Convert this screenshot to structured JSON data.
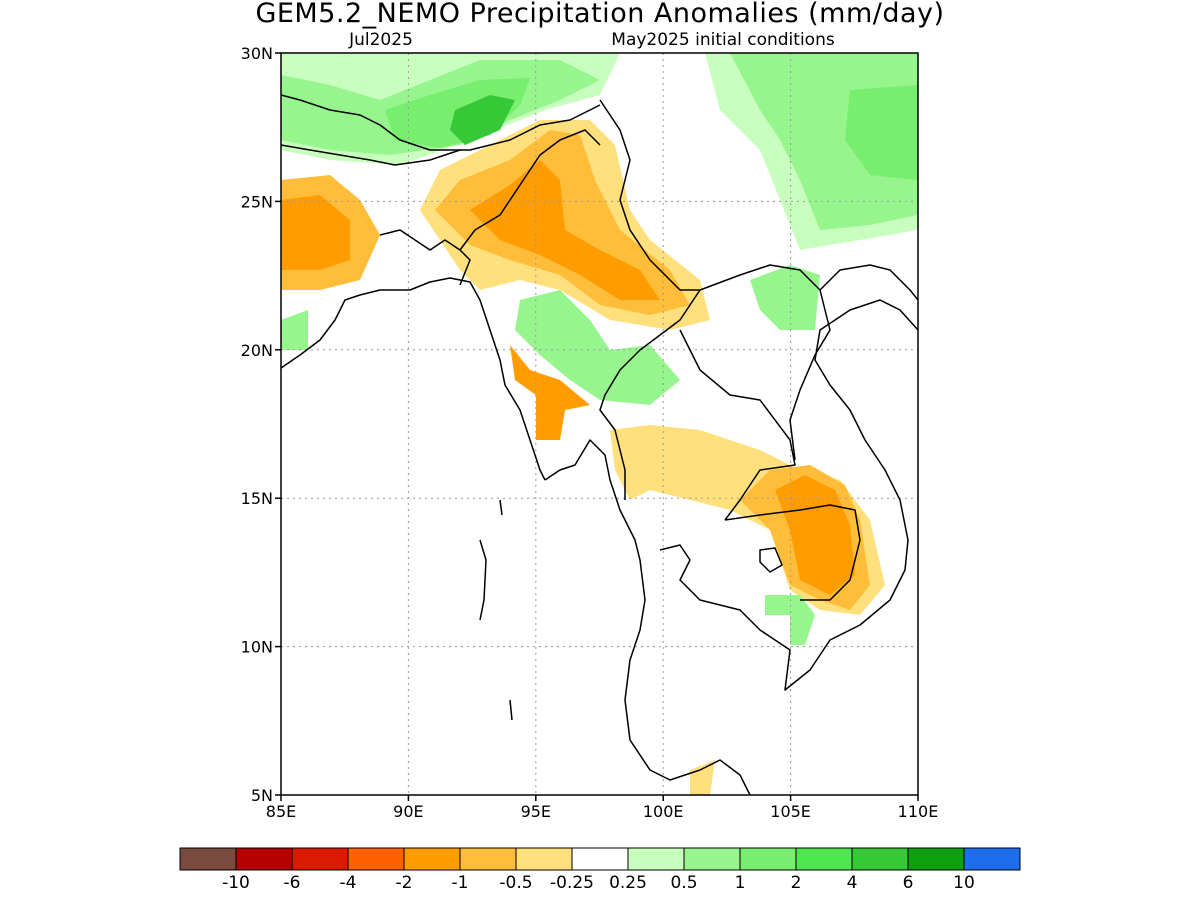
{
  "title": "GEM5.2_NEMO Precipitation Anomalies (mm/day)",
  "subtitle_left": "Jul2025",
  "subtitle_right": "May2025 initial conditions",
  "map": {
    "lon_range": [
      85,
      110
    ],
    "lat_range": [
      5,
      30
    ],
    "x_ticks": [
      "85E",
      "90E",
      "95E",
      "100E",
      "105E",
      "110E"
    ],
    "y_ticks": [
      "5N",
      "10N",
      "15N",
      "20N",
      "25N",
      "30N"
    ],
    "grid": true,
    "anomaly_regions": [
      {
        "label": "Himalaya / NE India wet",
        "category": "0.5 to 4",
        "sign": "positive"
      },
      {
        "label": "Bangladesh / Myanmar north dry",
        "category": "-1 to -0.25",
        "sign": "negative"
      },
      {
        "label": "South China wet",
        "category": "0.25 to 2",
        "sign": "positive"
      },
      {
        "label": "Cambodia / S Vietnam dry",
        "category": "-1 to -0.25",
        "sign": "negative"
      },
      {
        "label": "West Bengal dry",
        "category": "-1 to -0.25",
        "sign": "negative"
      }
    ]
  },
  "colorbar": {
    "labels": [
      "-10",
      "-6",
      "-4",
      "-2",
      "-1",
      "-0.5",
      "-0.25",
      "0.25",
      "0.5",
      "1",
      "2",
      "4",
      "6",
      "10"
    ],
    "colors": [
      "#7a4a3e",
      "#b40000",
      "#d91a00",
      "#ff6000",
      "#ff9c00",
      "#ffbd3a",
      "#ffe07c",
      "#ffffff",
      "#c8ffbe",
      "#96f58c",
      "#78ee6e",
      "#50e650",
      "#37c837",
      "#0fa00f",
      "#1e6eeb"
    ]
  }
}
